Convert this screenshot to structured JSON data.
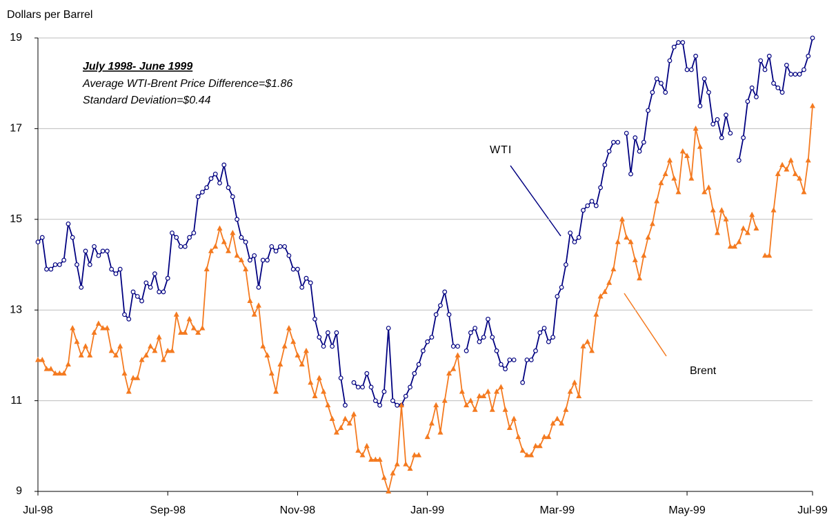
{
  "chart_data": {
    "type": "line",
    "y_axis_label": "Dollars per Barrel",
    "annotations": [
      "July 1998- June 1999",
      "Average WTI-Brent Price Difference=$1.86",
      "Standard Deviation=$0.44"
    ],
    "categories": [
      "Jul-98",
      null,
      null,
      null,
      null,
      null,
      null,
      null,
      null,
      null,
      null,
      null,
      null,
      null,
      null,
      null,
      null,
      null,
      null,
      null,
      null,
      null,
      null,
      null,
      null,
      null,
      null,
      null,
      null,
      null,
      "Sep-98",
      null,
      null,
      null,
      null,
      null,
      null,
      null,
      null,
      null,
      null,
      null,
      null,
      null,
      null,
      null,
      null,
      null,
      null,
      null,
      null,
      null,
      null,
      null,
      null,
      null,
      null,
      null,
      null,
      null,
      "Nov-98",
      null,
      null,
      null,
      null,
      null,
      null,
      null,
      null,
      null,
      null,
      null,
      null,
      null,
      null,
      null,
      null,
      null,
      null,
      null,
      null,
      null,
      null,
      null,
      null,
      null,
      null,
      null,
      null,
      null,
      "Jan-99",
      null,
      null,
      null,
      null,
      null,
      null,
      null,
      null,
      null,
      null,
      null,
      null,
      null,
      null,
      null,
      null,
      null,
      null,
      null,
      null,
      null,
      null,
      null,
      null,
      null,
      null,
      null,
      null,
      null,
      "Mar-99",
      null,
      null,
      null,
      null,
      null,
      null,
      null,
      null,
      null,
      null,
      null,
      null,
      null,
      null,
      null,
      null,
      null,
      null,
      null,
      null,
      null,
      null,
      null,
      null,
      null,
      null,
      null,
      null,
      null,
      "May-99",
      null,
      null,
      null,
      null,
      null,
      null,
      null,
      null,
      null,
      null,
      null,
      null,
      null,
      null,
      null,
      null,
      null,
      null,
      null,
      null,
      null,
      null,
      null,
      null,
      null,
      null,
      null,
      null,
      "Jul-99"
    ],
    "series": [
      {
        "name": "WTI",
        "color": "#000080",
        "marker": "circle",
        "values": [
          14.5,
          14.6,
          13.9,
          13.9,
          14.0,
          14.0,
          14.1,
          14.9,
          14.6,
          14.0,
          13.5,
          14.3,
          14.0,
          14.4,
          14.2,
          14.3,
          14.3,
          13.9,
          13.8,
          13.9,
          12.9,
          12.8,
          13.4,
          13.3,
          13.2,
          13.6,
          13.5,
          13.8,
          13.4,
          13.4,
          13.7,
          14.7,
          14.6,
          14.4,
          14.4,
          14.6,
          14.7,
          15.5,
          15.6,
          15.7,
          15.9,
          16.0,
          15.8,
          16.2,
          15.7,
          15.5,
          15.0,
          14.6,
          14.5,
          14.1,
          14.2,
          13.5,
          14.1,
          14.1,
          14.4,
          14.3,
          14.4,
          14.4,
          14.2,
          13.9,
          13.9,
          13.5,
          13.7,
          13.6,
          12.8,
          12.4,
          12.2,
          12.5,
          12.2,
          12.5,
          11.5,
          10.9,
          null,
          11.4,
          11.3,
          11.3,
          11.6,
          11.3,
          11.0,
          10.9,
          11.2,
          12.6,
          11.0,
          10.9,
          10.9,
          11.1,
          11.3,
          11.6,
          11.8,
          12.1,
          12.3,
          12.4,
          12.9,
          13.1,
          13.4,
          12.9,
          12.2,
          12.2,
          null,
          12.1,
          12.5,
          12.6,
          12.3,
          12.4,
          12.8,
          12.4,
          12.1,
          11.8,
          11.7,
          11.9,
          11.9,
          null,
          11.4,
          11.9,
          11.9,
          12.1,
          12.5,
          12.6,
          12.3,
          12.4,
          13.3,
          13.5,
          14.0,
          14.7,
          14.5,
          14.6,
          15.2,
          15.3,
          15.4,
          15.3,
          15.7,
          16.2,
          16.5,
          16.7,
          16.7,
          null,
          16.9,
          16.0,
          16.8,
          16.5,
          16.7,
          17.4,
          17.8,
          18.1,
          18.0,
          17.8,
          18.5,
          18.8,
          18.9,
          18.9,
          18.3,
          18.3,
          18.6,
          17.5,
          18.1,
          17.8,
          17.1,
          17.2,
          16.8,
          17.3,
          16.9,
          null,
          16.3,
          16.8,
          17.6,
          17.9,
          17.7,
          18.5,
          18.3,
          18.6,
          18.0,
          17.9,
          17.8,
          18.4,
          18.2,
          18.2,
          18.2,
          18.3,
          18.6,
          19.0
        ]
      },
      {
        "name": "Brent",
        "color": "#f47a20",
        "marker": "triangle",
        "values": [
          11.9,
          11.9,
          11.7,
          11.7,
          11.6,
          11.6,
          11.6,
          11.8,
          12.6,
          12.3,
          12.0,
          12.2,
          12.0,
          12.5,
          12.7,
          12.6,
          12.6,
          12.1,
          12.0,
          12.2,
          11.6,
          11.2,
          11.5,
          11.5,
          11.9,
          12.0,
          12.2,
          12.1,
          12.4,
          11.9,
          12.1,
          12.1,
          12.9,
          12.5,
          12.5,
          12.8,
          12.6,
          12.5,
          12.6,
          13.9,
          14.3,
          14.4,
          14.8,
          14.5,
          14.3,
          14.7,
          14.2,
          14.1,
          13.9,
          13.2,
          12.9,
          13.1,
          12.2,
          12.0,
          11.6,
          11.2,
          11.8,
          12.2,
          12.6,
          12.3,
          12.0,
          11.8,
          12.1,
          11.4,
          11.1,
          11.5,
          11.2,
          10.9,
          10.6,
          10.3,
          10.4,
          10.6,
          10.5,
          10.7,
          9.9,
          9.8,
          10.0,
          9.7,
          9.7,
          9.7,
          9.3,
          9.0,
          9.4,
          9.6,
          10.9,
          9.6,
          9.5,
          9.8,
          9.8,
          null,
          10.2,
          10.5,
          10.9,
          10.3,
          11.0,
          11.6,
          11.7,
          12.0,
          11.2,
          10.9,
          11.0,
          10.8,
          11.1,
          11.1,
          11.2,
          10.8,
          11.2,
          11.3,
          10.8,
          10.4,
          10.6,
          10.2,
          9.9,
          9.8,
          9.8,
          10.0,
          10.0,
          10.2,
          10.2,
          10.5,
          10.6,
          10.5,
          10.8,
          11.2,
          11.4,
          11.1,
          12.2,
          12.3,
          12.1,
          12.9,
          13.3,
          13.4,
          13.6,
          13.9,
          14.5,
          15.0,
          14.6,
          14.5,
          14.1,
          13.7,
          14.2,
          14.6,
          14.9,
          15.4,
          15.8,
          16.0,
          16.3,
          15.9,
          15.6,
          16.5,
          16.4,
          15.9,
          17.0,
          16.6,
          15.6,
          15.7,
          15.2,
          14.7,
          15.2,
          15.0,
          14.4,
          14.4,
          14.5,
          14.8,
          14.7,
          15.1,
          14.8,
          null,
          14.2,
          14.2,
          15.2,
          16.0,
          16.2,
          16.1,
          16.3,
          16.0,
          15.9,
          15.6,
          16.3,
          17.5
        ]
      }
    ],
    "ylim": [
      9,
      19
    ],
    "yticks": [
      9,
      11,
      13,
      15,
      17,
      19
    ],
    "grid": true
  }
}
